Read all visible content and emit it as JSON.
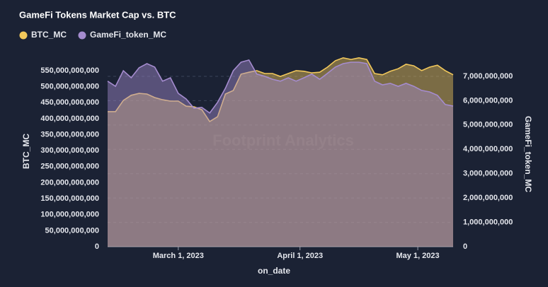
{
  "chart_data": {
    "type": "area",
    "title": "GameFi Tokens Market Cap vs. BTC",
    "watermark": "Footprint Analytics",
    "x_label": "on_date",
    "y_label": "BTC_MC",
    "y2_label": "GameFi_token_MC",
    "x": [
      "2023-02-11",
      "2023-02-13",
      "2023-02-15",
      "2023-02-17",
      "2023-02-19",
      "2023-02-21",
      "2023-02-23",
      "2023-02-25",
      "2023-02-27",
      "2023-03-01",
      "2023-03-03",
      "2023-03-05",
      "2023-03-07",
      "2023-03-09",
      "2023-03-11",
      "2023-03-13",
      "2023-03-15",
      "2023-03-17",
      "2023-03-19",
      "2023-03-21",
      "2023-03-23",
      "2023-03-25",
      "2023-03-27",
      "2023-03-29",
      "2023-03-31",
      "2023-04-02",
      "2023-04-04",
      "2023-04-06",
      "2023-04-08",
      "2023-04-10",
      "2023-04-12",
      "2023-04-14",
      "2023-04-16",
      "2023-04-18",
      "2023-04-20",
      "2023-04-22",
      "2023-04-24",
      "2023-04-26",
      "2023-04-28",
      "2023-04-30",
      "2023-05-02",
      "2023-05-04",
      "2023-05-06",
      "2023-05-08",
      "2023-05-10"
    ],
    "xlim": [
      "2023-02-11",
      "2023-05-10"
    ],
    "xticks": [
      {
        "value": "2023-03-01",
        "label": "March 1, 2023"
      },
      {
        "value": "2023-04-01",
        "label": "April 1, 2023"
      },
      {
        "value": "2023-05-01",
        "label": "May 1, 2023"
      }
    ],
    "series": [
      {
        "name": "BTC_MC",
        "color": "#f2c85b",
        "axis": "y",
        "values": [
          422000000000,
          422000000000,
          457000000000,
          473000000000,
          479000000000,
          477000000000,
          466000000000,
          459000000000,
          455000000000,
          455000000000,
          439000000000,
          437000000000,
          428000000000,
          391000000000,
          406000000000,
          477000000000,
          488000000000,
          539000000000,
          545000000000,
          550000000000,
          541000000000,
          541000000000,
          532000000000,
          541000000000,
          550000000000,
          548000000000,
          543000000000,
          545000000000,
          561000000000,
          581000000000,
          590000000000,
          585000000000,
          590000000000,
          585000000000,
          541000000000,
          537000000000,
          548000000000,
          556000000000,
          570000000000,
          565000000000,
          550000000000,
          561000000000,
          567000000000,
          550000000000,
          537000000000
        ]
      },
      {
        "name": "GameFi_token_MC",
        "color": "#a58ccf",
        "axis": "y2",
        "values": [
          6800000000,
          6590000000,
          7230000000,
          6940000000,
          7350000000,
          7520000000,
          7380000000,
          6800000000,
          6940000000,
          6300000000,
          6070000000,
          5690000000,
          5720000000,
          5490000000,
          5930000000,
          6510000000,
          7230000000,
          7580000000,
          7670000000,
          7090000000,
          7000000000,
          6880000000,
          6800000000,
          6940000000,
          6800000000,
          6940000000,
          7090000000,
          6880000000,
          7120000000,
          7380000000,
          7520000000,
          7580000000,
          7580000000,
          7520000000,
          6800000000,
          6650000000,
          6710000000,
          6590000000,
          6710000000,
          6590000000,
          6420000000,
          6360000000,
          6220000000,
          5840000000,
          5780000000
        ]
      }
    ],
    "ylim": [
      0,
      600000000000
    ],
    "yticks": [
      0,
      {
        "value": 50000000000,
        "label": "50,000,000,000"
      },
      {
        "value": 100000000000,
        "label": "100,000,000,000"
      },
      {
        "value": 150000000000,
        "label": "150,000,000,000"
      },
      {
        "value": 200000000000,
        "label": "200,000,000,000"
      },
      {
        "value": 250000000000,
        "label": "250,000,000,000"
      },
      {
        "value": 300000000000,
        "label": "300,000,000,000"
      },
      {
        "value": 350000000000,
        "label": "350,000,000,000"
      },
      {
        "value": 400000000000,
        "label": "400,000,000,000"
      },
      {
        "value": 450000000000,
        "label": "450,000,000,000"
      },
      {
        "value": 500000000000,
        "label": "500,000,000,000"
      },
      {
        "value": 550000000000,
        "label": "550,000,000,000"
      }
    ],
    "y2lim": [
      0,
      7890000000
    ],
    "y2ticks": [
      0,
      {
        "value": 1000000000,
        "label": "1,000,000,000"
      },
      {
        "value": 2000000000,
        "label": "2,000,000,000"
      },
      {
        "value": 3000000000,
        "label": "3,000,000,000"
      },
      {
        "value": 4000000000,
        "label": "4,000,000,000"
      },
      {
        "value": 5000000000,
        "label": "5,000,000,000"
      },
      {
        "value": 6000000000,
        "label": "6,000,000,000"
      },
      {
        "value": 7000000000,
        "label": "7,000,000,000"
      }
    ],
    "grid": true
  }
}
